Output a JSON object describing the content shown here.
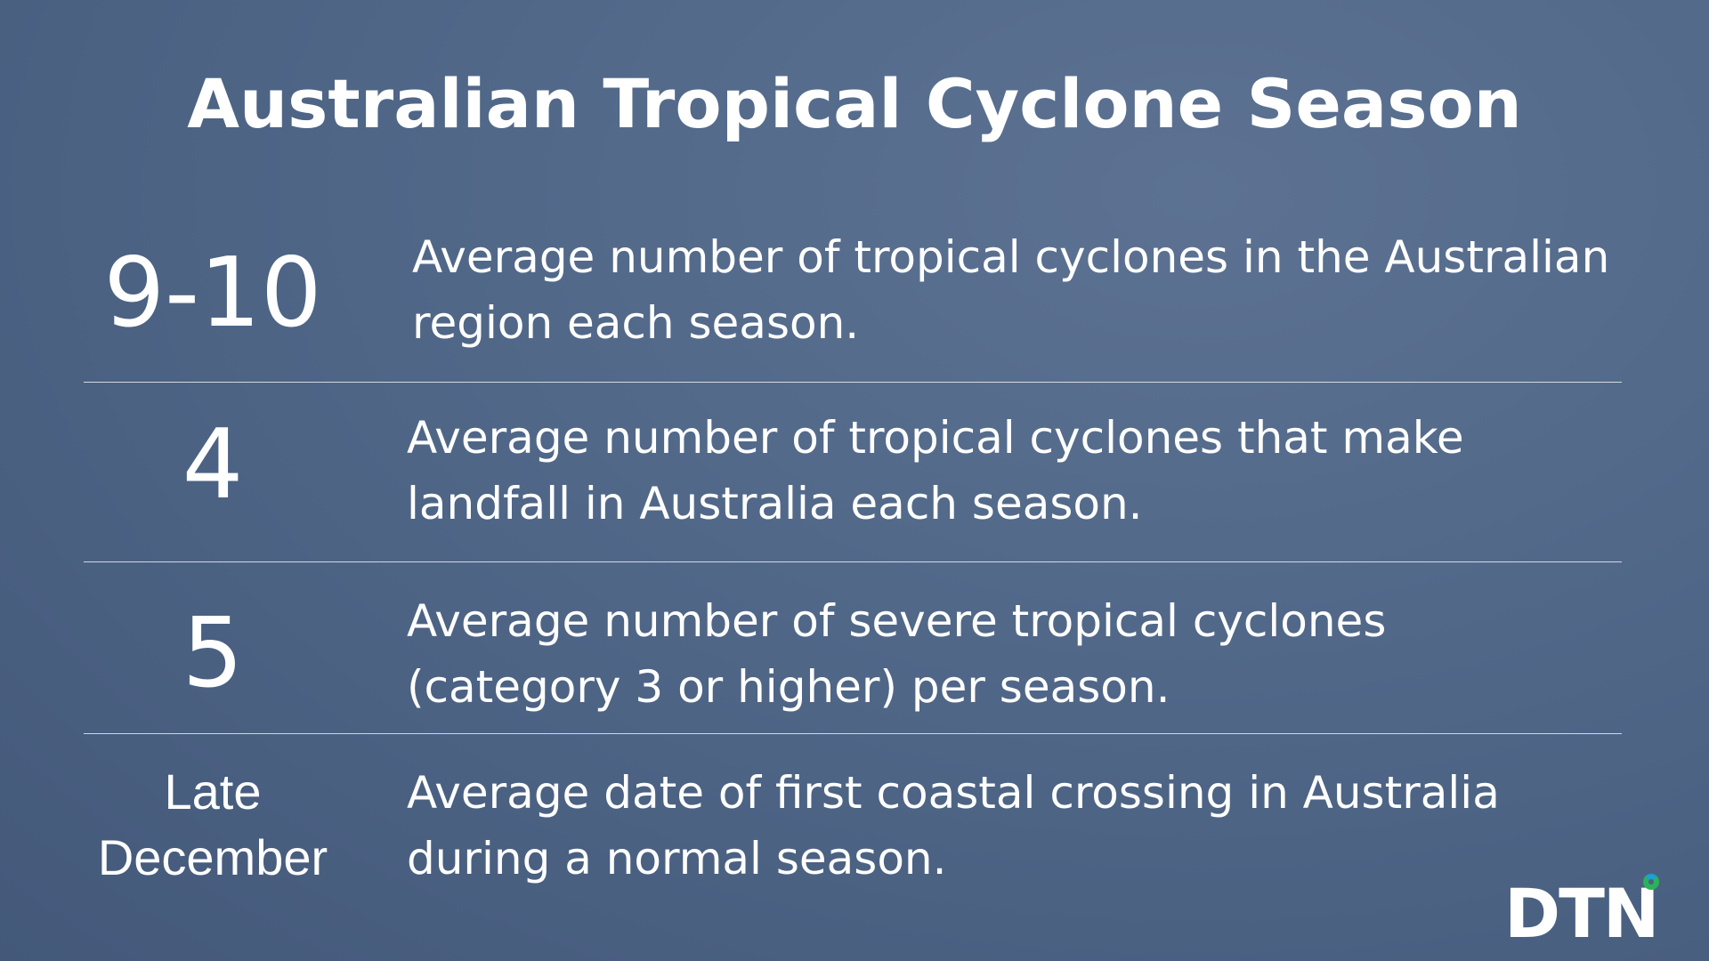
{
  "title": "Australian Tropical Cyclone Season",
  "rows": [
    {
      "stat": "9-10",
      "description": "Average number of tropical cyclones in the Australian region each season."
    },
    {
      "stat": "4",
      "description": "Average number of tropical cyclones that make landfall in Australia each season."
    },
    {
      "stat": "5",
      "description": "Average number of severe tropical cyclones (category 3 or higher) per season."
    },
    {
      "stat": "Late December",
      "description": "Average date of first coastal crossing in Australia during a normal season."
    }
  ],
  "logo": "DTN"
}
